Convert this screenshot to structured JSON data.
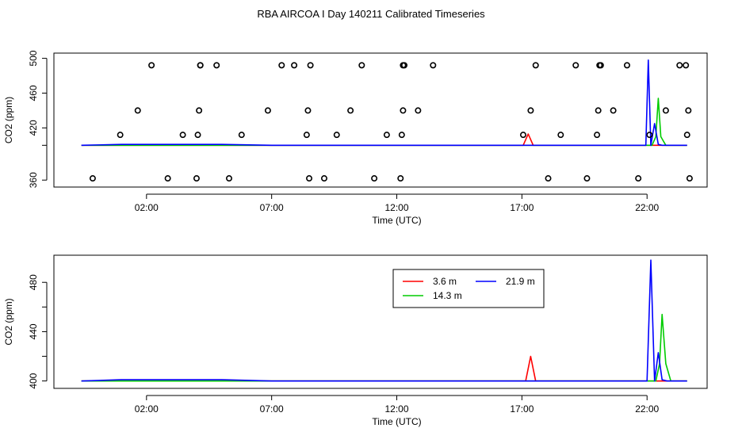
{
  "title": "RBA AIRCOA I  Day 140211  Calibrated Timeseries",
  "colors": {
    "3.6 m": "#ff0000",
    "14.3 m": "#00cc00",
    "21.9 m": "#0000ff",
    "points": "#000000"
  },
  "chart_data": [
    {
      "type": "line",
      "xlabel": "Time (UTC)",
      "ylabel": "CO2 (ppm)",
      "x_ticks": [
        "02:00",
        "07:00",
        "12:00",
        "17:00",
        "22:00"
      ],
      "y_ticks": [
        360,
        400,
        420,
        460,
        500
      ],
      "y_tick_labels": [
        "360",
        "420",
        "460",
        "500"
      ],
      "xlim": [
        -1.7,
        24.4
      ],
      "ylim": [
        352,
        506
      ],
      "grid": false,
      "series": [
        {
          "name": "3.6 m",
          "color": "#ff0000",
          "x": [
            -0.6,
            2.0,
            7.0,
            12.0,
            16.3,
            17.05,
            17.25,
            17.45,
            17.8,
            19.0,
            20.5,
            21.5,
            21.8,
            22.05,
            22.3,
            22.5,
            22.7,
            23.6
          ],
          "y": [
            400,
            400,
            400,
            400,
            400,
            400,
            413,
            400,
            400,
            400,
            400,
            400,
            400,
            400,
            400,
            400,
            400,
            400
          ]
        },
        {
          "name": "14.3 m",
          "color": "#00cc00",
          "x": [
            -0.6,
            2.0,
            7.0,
            12.0,
            17.0,
            21.0,
            21.6,
            21.85,
            22.05,
            22.2,
            22.35,
            22.45,
            22.55,
            22.75,
            23.6
          ],
          "y": [
            400,
            400,
            400,
            400,
            400,
            400,
            400,
            400,
            400,
            400,
            410,
            454,
            410,
            400,
            400
          ]
        },
        {
          "name": "21.9 m",
          "color": "#0000ff",
          "x": [
            -0.6,
            1.0,
            3.0,
            5.0,
            7.0,
            10.0,
            12.0,
            15.0,
            17.0,
            18.5,
            20.0,
            21.5,
            21.8,
            21.95,
            22.05,
            22.15,
            22.3,
            22.45,
            22.6,
            23.0,
            23.6
          ],
          "y": [
            400,
            401,
            401,
            401,
            400,
            400,
            400,
            400,
            400,
            400,
            400,
            400,
            400,
            400,
            498,
            400,
            425,
            401,
            400,
            400,
            400
          ]
        }
      ],
      "points": {
        "x": [
          -0.15,
          0.95,
          1.65,
          2.2,
          2.85,
          3.45,
          4.0,
          4.05,
          4.1,
          4.15,
          4.15,
          4.8,
          5.3,
          5.8,
          6.85,
          7.4,
          7.9,
          8.4,
          8.45,
          8.5,
          8.55,
          9.1,
          9.6,
          10.15,
          10.6,
          11.1,
          11.6,
          12.15,
          12.2,
          12.25,
          12.25,
          12.3,
          12.85,
          13.45,
          17.05,
          17.35,
          17.55,
          18.05,
          18.55,
          19.15,
          19.6,
          20.0,
          20.05,
          20.1,
          20.15,
          20.65,
          21.2,
          21.65,
          22.1,
          22.75,
          23.3,
          23.55,
          23.6,
          23.65,
          23.7
        ],
        "y": [
          362,
          412,
          440,
          492,
          362,
          412,
          362,
          412,
          440,
          492,
          492,
          492,
          362,
          412,
          440,
          492,
          492,
          412,
          440,
          362,
          492,
          362,
          412,
          440,
          492,
          362,
          412,
          362,
          412,
          440,
          492,
          492,
          440,
          492,
          412,
          440,
          492,
          362,
          412,
          492,
          362,
          412,
          440,
          492,
          492,
          440,
          492,
          362,
          412,
          440,
          492,
          492,
          412,
          440,
          362
        ]
      }
    },
    {
      "type": "line",
      "xlabel": "Time (UTC)",
      "ylabel": "CO2 (ppm)",
      "x_ticks": [
        "02:00",
        "07:00",
        "12:00",
        "17:00",
        "22:00"
      ],
      "y_ticks": [
        400,
        420,
        440,
        460,
        480
      ],
      "y_tick_labels": [
        "400",
        "440",
        "480"
      ],
      "xlim": [
        -1.7,
        24.4
      ],
      "ylim": [
        394,
        502
      ],
      "grid": false,
      "legend": {
        "position": "top-center",
        "entries": [
          "3.6 m",
          "14.3 m",
          "21.9 m"
        ]
      },
      "series": [
        {
          "name": "3.6 m",
          "color": "#ff0000",
          "x": [
            -0.6,
            2.0,
            7.0,
            12.0,
            16.3,
            17.15,
            17.35,
            17.55,
            17.9,
            19.0,
            20.5,
            21.5,
            21.9,
            22.2,
            22.5,
            22.8,
            23.6
          ],
          "y": [
            400,
            400,
            400,
            400,
            400,
            400,
            420,
            400,
            400,
            400,
            400,
            400,
            400,
            400,
            400,
            400,
            400
          ]
        },
        {
          "name": "14.3 m",
          "color": "#00cc00",
          "x": [
            -0.6,
            2.0,
            7.0,
            12.0,
            17.0,
            21.0,
            21.7,
            22.0,
            22.2,
            22.35,
            22.5,
            22.6,
            22.75,
            22.95,
            23.6
          ],
          "y": [
            400,
            400,
            400,
            400,
            400,
            400,
            400,
            400,
            400,
            400,
            414,
            454,
            414,
            400,
            400
          ]
        },
        {
          "name": "21.9 m",
          "color": "#0000ff",
          "x": [
            -0.6,
            1.0,
            3.0,
            5.0,
            7.0,
            10.0,
            12.0,
            15.0,
            17.0,
            18.5,
            20.0,
            21.5,
            21.85,
            22.0,
            22.15,
            22.3,
            22.45,
            22.6,
            22.8,
            23.2,
            23.6
          ],
          "y": [
            400,
            401,
            401,
            401,
            400,
            400,
            400,
            400,
            400,
            400,
            400,
            400,
            400,
            400,
            498,
            400,
            423,
            401,
            400,
            400,
            400
          ]
        }
      ]
    }
  ]
}
